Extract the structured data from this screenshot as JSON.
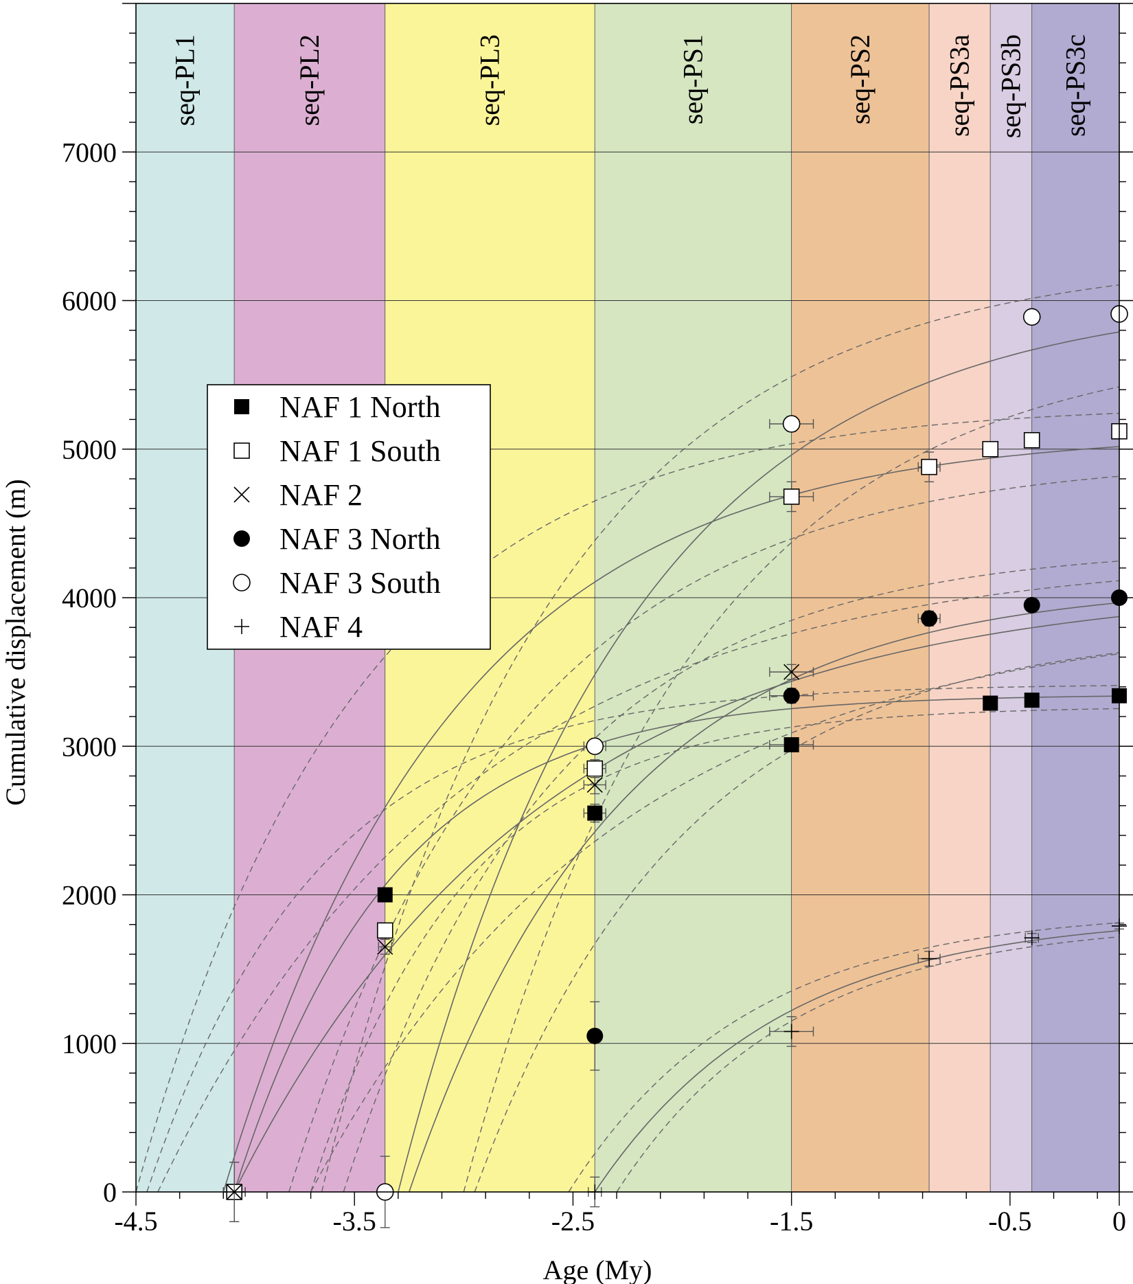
{
  "chart_data": {
    "type": "scatter",
    "xlabel": "Age (My)",
    "ylabel": "Cumulative displacement (m)",
    "xlim": [
      -4.5,
      0
    ],
    "ylim": [
      0,
      8000
    ],
    "x_ticks": [
      -4.5,
      -3.5,
      -2.5,
      -1.5,
      -0.5,
      0
    ],
    "x_tick_labels": [
      "-4.5",
      "-3.5",
      "-2.5",
      "-1.5",
      "-0.5",
      "0"
    ],
    "y_ticks": [
      0,
      1000,
      2000,
      3000,
      4000,
      5000,
      6000,
      7000
    ],
    "y_tick_labels": [
      "0",
      "1000",
      "2000",
      "3000",
      "4000",
      "5000",
      "6000",
      "7000"
    ],
    "grid": true,
    "legend_position": "left-middle",
    "bands": [
      {
        "label": "seq-PL1",
        "from": -4.5,
        "to": -4.05,
        "color": "#d0e8e8"
      },
      {
        "label": "seq-PL2",
        "from": -4.05,
        "to": -3.36,
        "color": "#dcafd2"
      },
      {
        "label": "seq-PL3",
        "from": -3.36,
        "to": -2.4,
        "color": "#fbf59a"
      },
      {
        "label": "seq-PS1",
        "from": -2.4,
        "to": -1.5,
        "color": "#d5e6c1"
      },
      {
        "label": "seq-PS2",
        "from": -1.5,
        "to": -0.87,
        "color": "#eec297"
      },
      {
        "label": "seq-PS3a",
        "from": -0.87,
        "to": -0.59,
        "color": "#f7d4c6"
      },
      {
        "label": "seq-PS3b",
        "from": -0.59,
        "to": -0.4,
        "color": "#d8cde2"
      },
      {
        "label": "seq-PS3c",
        "from": -0.4,
        "to": 0,
        "color": "#b1abd1"
      }
    ],
    "series": [
      {
        "name": "NAF 1 North",
        "marker": "square-filled",
        "points": [
          [
            -4.05,
            0
          ],
          [
            -3.36,
            2000
          ],
          [
            -2.4,
            2550
          ],
          [
            -1.5,
            3010
          ],
          [
            -0.59,
            3290
          ],
          [
            -0.4,
            3310
          ],
          [
            0,
            3340
          ]
        ],
        "x_err": [
          0.05,
          0.03,
          0.05,
          0.1,
          0.03,
          0.03,
          0
        ],
        "y_err": [
          200,
          40,
          60,
          40,
          40,
          40,
          20
        ]
      },
      {
        "name": "NAF 1 South",
        "marker": "square-open",
        "points": [
          [
            -4.05,
            0
          ],
          [
            -3.36,
            1760
          ],
          [
            -2.4,
            2850
          ],
          [
            -1.5,
            4680
          ],
          [
            -0.87,
            4880
          ],
          [
            -0.59,
            5000
          ],
          [
            -0.4,
            5060
          ],
          [
            0,
            5120
          ]
        ],
        "x_err": [
          0.05,
          0.03,
          0.05,
          0.1,
          0.05,
          0.03,
          0.03,
          0
        ],
        "y_err": [
          200,
          50,
          60,
          100,
          100,
          30,
          30,
          20
        ]
      },
      {
        "name": "NAF 2",
        "marker": "x",
        "points": [
          [
            -4.05,
            0
          ],
          [
            -3.36,
            1650
          ],
          [
            -2.4,
            2740
          ],
          [
            -1.5,
            3500
          ]
        ],
        "x_err": [
          0.05,
          0.03,
          0.05,
          0.1
        ],
        "y_err": [
          200,
          50,
          60,
          50
        ]
      },
      {
        "name": "NAF 3 North",
        "marker": "circle-filled",
        "points": [
          [
            -2.4,
            1050
          ],
          [
            -1.5,
            3340
          ],
          [
            -0.87,
            3860
          ],
          [
            -0.4,
            3950
          ],
          [
            0,
            4000
          ]
        ],
        "x_err": [
          0.03,
          0.1,
          0.05,
          0.03,
          0
        ],
        "y_err": [
          230,
          50,
          50,
          30,
          20
        ]
      },
      {
        "name": "NAF 3 South",
        "marker": "circle-open",
        "points": [
          [
            -3.36,
            0
          ],
          [
            -2.4,
            3000
          ],
          [
            -1.5,
            5170
          ],
          [
            -0.4,
            5890
          ],
          [
            0,
            5910
          ]
        ],
        "x_err": [
          0.03,
          0.05,
          0.1,
          0.03,
          0
        ],
        "y_err": [
          240,
          40,
          50,
          40,
          20
        ]
      },
      {
        "name": "NAF 4",
        "marker": "plus",
        "points": [
          [
            -2.4,
            0
          ],
          [
            -1.5,
            1080
          ],
          [
            -0.87,
            1570
          ],
          [
            -0.4,
            1710
          ],
          [
            0,
            1790
          ]
        ],
        "x_err": [
          0.03,
          0.1,
          0.05,
          0.03,
          0
        ],
        "y_err": [
          100,
          100,
          50,
          30,
          20
        ]
      }
    ],
    "fit_curves": [
      {
        "name": "NAF 1 North fit",
        "kind": "solid",
        "x0": -4.05,
        "asymptote": 3350,
        "tau": 0.72
      },
      {
        "name": "NAF 1 North bound hi",
        "kind": "dashed",
        "x0": -4.45,
        "asymptote": 3420,
        "tau": 0.78
      },
      {
        "name": "NAF 1 North bound lo",
        "kind": "dashed",
        "x0": -3.7,
        "asymptote": 3270,
        "tau": 0.7
      },
      {
        "name": "NAF 1 South fit",
        "kind": "solid",
        "x0": -4.1,
        "asymptote": 5120,
        "tau": 1.05
      },
      {
        "name": "NAF 1 South bound hi",
        "kind": "dashed",
        "x0": -4.5,
        "asymptote": 5300,
        "tau": 1.0
      },
      {
        "name": "NAF 1 South bound lo",
        "kind": "dashed",
        "x0": -3.8,
        "asymptote": 4950,
        "tau": 1.05
      },
      {
        "name": "NAF 2 fit",
        "kind": "solid",
        "x0": -4.05,
        "asymptote": 4100,
        "tau": 1.4
      },
      {
        "name": "NAF 2 bound hi",
        "kind": "dashed",
        "x0": -4.4,
        "asymptote": 4300,
        "tau": 1.4
      },
      {
        "name": "NAF 2 bound lo",
        "kind": "dashed",
        "x0": -3.7,
        "asymptote": 3900,
        "tau": 1.4
      },
      {
        "name": "NAF 3 North fit",
        "kind": "solid",
        "x0": -3.25,
        "asymptote": 4100,
        "tau": 0.95
      },
      {
        "name": "NAF 3 North bound hi",
        "kind": "dashed",
        "x0": -3.55,
        "asymptote": 4350,
        "tau": 0.95
      },
      {
        "name": "NAF 3 North bound lo",
        "kind": "dashed",
        "x0": -2.95,
        "asymptote": 3800,
        "tau": 0.95
      },
      {
        "name": "NAF 3 South fit",
        "kind": "solid",
        "x0": -3.3,
        "asymptote": 6050,
        "tau": 1.05
      },
      {
        "name": "NAF 3 South bound hi",
        "kind": "dashed",
        "x0": -3.65,
        "asymptote": 6300,
        "tau": 1.05
      },
      {
        "name": "NAF 3 South bound lo",
        "kind": "dashed",
        "x0": -3.0,
        "asymptote": 5750,
        "tau": 1.05
      },
      {
        "name": "NAF 4 fit",
        "kind": "solid",
        "x0": -2.4,
        "asymptote": 1870,
        "tau": 0.85
      },
      {
        "name": "NAF 4 bound hi",
        "kind": "dashed",
        "x0": -2.52,
        "asymptote": 1900,
        "tau": 0.82
      },
      {
        "name": "NAF 4 bound lo",
        "kind": "dashed",
        "x0": -2.3,
        "asymptote": 1820,
        "tau": 0.8
      }
    ]
  }
}
